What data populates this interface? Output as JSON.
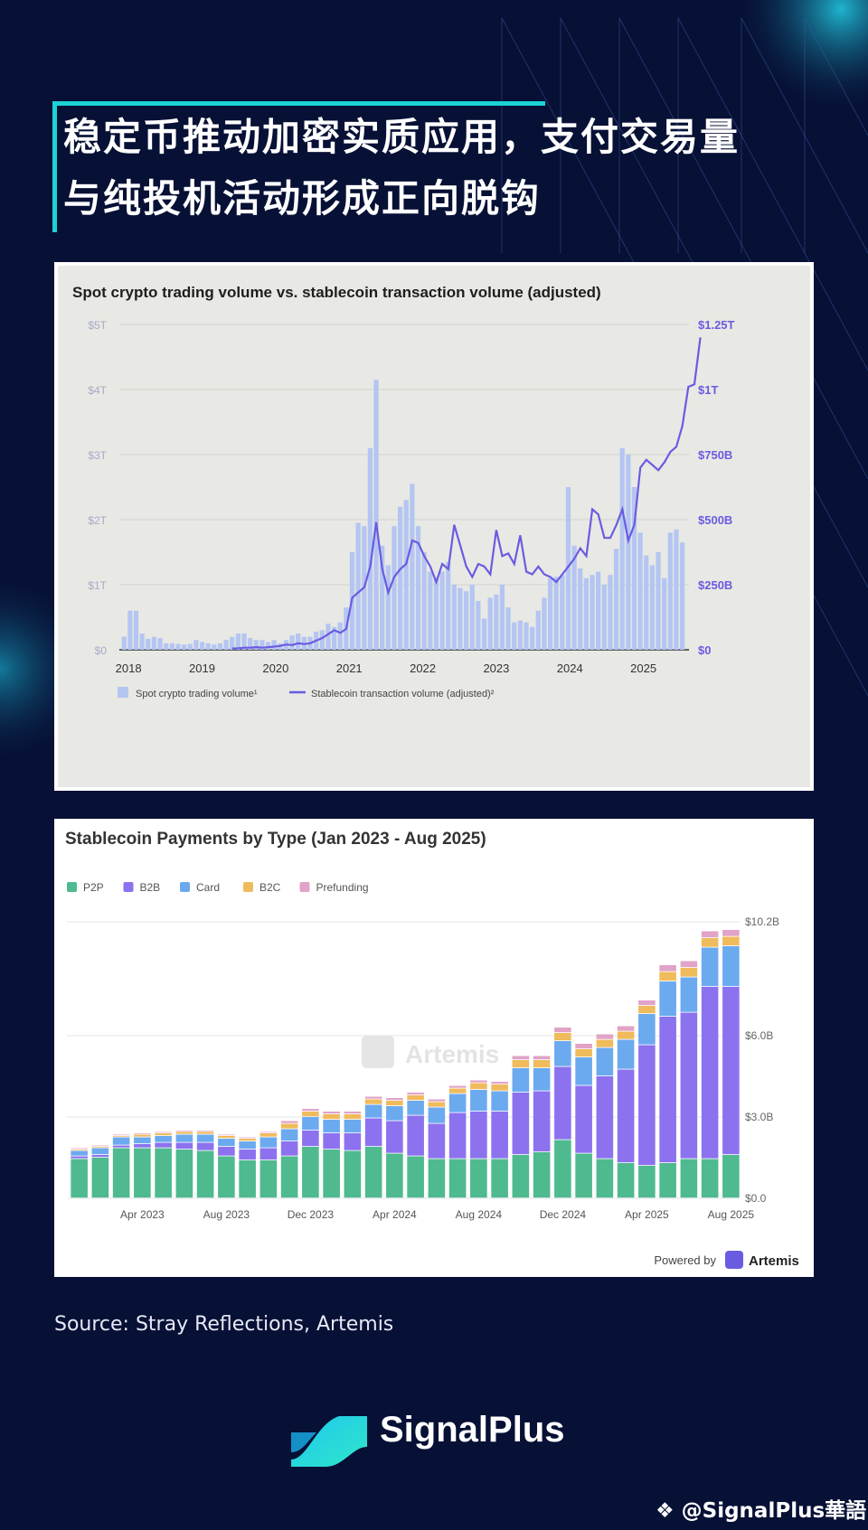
{
  "title": {
    "line1": "稳定币推动加密实质应用，支付交易量",
    "line2": "与纯投机活动形成正向脱钩"
  },
  "source": "Source: Stray Reflections, Artemis",
  "brand": {
    "name": "SignalPlus",
    "watermark": "@SignalPlus華語"
  },
  "colors": {
    "background": "#071035",
    "accent": "#1bd3d6",
    "spot_bar": "#b4c5f2",
    "stable_line": "#6a5be2",
    "p2p": "#4fb98f",
    "b2b": "#8c72ef",
    "card": "#6caaf0",
    "b2c": "#f0bb5c",
    "prefunding": "#e1a3c7"
  },
  "chart_data": [
    {
      "type": "bar+line",
      "title": "Spot crypto trading volume vs. stablecoin transaction volume (adjusted)",
      "left_axis": {
        "ticks": [
          "$0",
          "$1T",
          "$2T",
          "$3T",
          "$4T",
          "$5T"
        ],
        "range": [
          0,
          5
        ],
        "unit": "T"
      },
      "right_axis": {
        "ticks": [
          "$0",
          "$250B",
          "$500B",
          "$750B",
          "$1T",
          "$1.25T"
        ],
        "range": [
          0,
          1250
        ],
        "unit": "B"
      },
      "x_ticks": [
        "2018",
        "2019",
        "2020",
        "2021",
        "2022",
        "2023",
        "2024",
        "2025"
      ],
      "legend": [
        "Spot crypto trading volume¹",
        "Stablecoin transaction volume (adjusted)²"
      ],
      "start_year": 2017.95,
      "end_year": 2025.62,
      "spot_volume_T": [
        0.2,
        0.6,
        0.6,
        0.25,
        0.17,
        0.2,
        0.18,
        0.1,
        0.1,
        0.09,
        0.08,
        0.09,
        0.15,
        0.12,
        0.1,
        0.08,
        0.1,
        0.15,
        0.2,
        0.25,
        0.25,
        0.18,
        0.15,
        0.15,
        0.12,
        0.15,
        0.1,
        0.15,
        0.22,
        0.25,
        0.2,
        0.2,
        0.28,
        0.3,
        0.4,
        0.35,
        0.42,
        0.65,
        1.5,
        1.95,
        1.9,
        3.1,
        4.15,
        1.6,
        1.3,
        1.9,
        2.2,
        2.3,
        2.55,
        1.9,
        1.5,
        1.2,
        1.1,
        1.2,
        1.35,
        1.0,
        0.95,
        0.9,
        1.0,
        0.75,
        0.48,
        0.8,
        0.85,
        1.0,
        0.65,
        0.42,
        0.45,
        0.42,
        0.35,
        0.6,
        0.8,
        1.1,
        1.12,
        1.15,
        2.5,
        1.6,
        1.25,
        1.1,
        1.15,
        1.2,
        1.0,
        1.15,
        1.55,
        3.1,
        3.0,
        2.5,
        1.8,
        1.45,
        1.3,
        1.5,
        1.1,
        1.8,
        1.85,
        1.65
      ],
      "stablecoin_B": [
        null,
        null,
        null,
        null,
        null,
        null,
        null,
        null,
        null,
        null,
        null,
        null,
        null,
        null,
        null,
        null,
        null,
        null,
        5,
        6,
        8,
        8,
        10,
        8,
        10,
        12,
        15,
        20,
        18,
        25,
        22,
        25,
        35,
        45,
        60,
        75,
        65,
        80,
        200,
        220,
        240,
        320,
        490,
        310,
        220,
        280,
        310,
        330,
        420,
        410,
        360,
        320,
        260,
        330,
        310,
        480,
        400,
        320,
        280,
        330,
        320,
        290,
        460,
        360,
        370,
        330,
        440,
        300,
        290,
        320,
        290,
        280,
        260,
        290,
        320,
        350,
        390,
        360,
        540,
        520,
        430,
        430,
        480,
        540,
        420,
        480,
        700,
        730,
        710,
        690,
        720,
        760,
        780,
        860,
        1010,
        1020,
        1200
      ]
    },
    {
      "type": "stacked-bar",
      "title": "Stablecoin Payments by Type (Jan 2023 - Aug 2025)",
      "legend": [
        "P2P",
        "B2B",
        "Card",
        "B2C",
        "Prefunding"
      ],
      "y_ticks": [
        "$0.0",
        "$3.0B",
        "$6.0B",
        "$10.2B"
      ],
      "y_range": [
        0,
        10.2
      ],
      "x_ticks": [
        "Apr 2023",
        "Aug 2023",
        "Dec 2023",
        "Apr 2024",
        "Aug 2024",
        "Dec 2024",
        "Apr 2025",
        "Aug 2025"
      ],
      "x_tick_index": [
        3,
        7,
        11,
        15,
        19,
        23,
        27,
        31
      ],
      "watermark": "Artemis",
      "footer": "Powered by",
      "footer_brand": "Artemis",
      "months": [
        "Jan 2023",
        "Feb 2023",
        "Mar 2023",
        "Apr 2023",
        "May 2023",
        "Jun 2023",
        "Jul 2023",
        "Aug 2023",
        "Sep 2023",
        "Oct 2023",
        "Nov 2023",
        "Dec 2023",
        "Jan 2024",
        "Feb 2024",
        "Mar 2024",
        "Apr 2024",
        "May 2024",
        "Jun 2024",
        "Jul 2024",
        "Aug 2024",
        "Sep 2024",
        "Oct 2024",
        "Nov 2024",
        "Dec 2024",
        "Jan 2025",
        "Feb 2025",
        "Mar 2025",
        "Apr 2025",
        "May 2025",
        "Jun 2025",
        "Jul 2025",
        "Aug 2025"
      ],
      "series": [
        {
          "name": "P2P",
          "values": [
            1.45,
            1.5,
            1.85,
            1.85,
            1.85,
            1.8,
            1.75,
            1.55,
            1.4,
            1.4,
            1.55,
            1.9,
            1.8,
            1.75,
            1.9,
            1.65,
            1.55,
            1.45,
            1.45,
            1.45,
            1.45,
            1.6,
            1.7,
            2.15,
            1.65,
            1.45,
            1.3,
            1.2,
            1.3,
            1.45,
            1.45,
            1.6
          ]
        },
        {
          "name": "B2B",
          "values": [
            0.1,
            0.1,
            0.1,
            0.15,
            0.2,
            0.25,
            0.3,
            0.35,
            0.4,
            0.45,
            0.55,
            0.6,
            0.6,
            0.65,
            1.05,
            1.2,
            1.5,
            1.3,
            1.7,
            1.75,
            1.75,
            2.3,
            2.25,
            2.7,
            2.5,
            3.05,
            3.45,
            4.45,
            5.4,
            5.4,
            6.35,
            6.2
          ]
        },
        {
          "name": "Card",
          "values": [
            0.2,
            0.25,
            0.3,
            0.25,
            0.25,
            0.3,
            0.3,
            0.3,
            0.3,
            0.4,
            0.45,
            0.5,
            0.5,
            0.5,
            0.5,
            0.55,
            0.55,
            0.6,
            0.7,
            0.8,
            0.75,
            0.9,
            0.85,
            0.95,
            1.05,
            1.05,
            1.1,
            1.15,
            1.3,
            1.3,
            1.45,
            1.5
          ]
        },
        {
          "name": "B2C",
          "values": [
            0.05,
            0.05,
            0.05,
            0.1,
            0.1,
            0.1,
            0.1,
            0.1,
            0.1,
            0.15,
            0.2,
            0.2,
            0.2,
            0.2,
            0.2,
            0.2,
            0.2,
            0.2,
            0.2,
            0.25,
            0.25,
            0.3,
            0.3,
            0.3,
            0.3,
            0.3,
            0.3,
            0.3,
            0.35,
            0.35,
            0.35,
            0.35
          ]
        },
        {
          "name": "Prefunding",
          "values": [
            0.05,
            0.05,
            0.05,
            0.05,
            0.05,
            0.05,
            0.05,
            0.05,
            0.05,
            0.05,
            0.1,
            0.1,
            0.1,
            0.1,
            0.1,
            0.1,
            0.1,
            0.1,
            0.1,
            0.1,
            0.1,
            0.15,
            0.15,
            0.2,
            0.2,
            0.2,
            0.2,
            0.2,
            0.25,
            0.25,
            0.25,
            0.25
          ]
        }
      ]
    }
  ]
}
